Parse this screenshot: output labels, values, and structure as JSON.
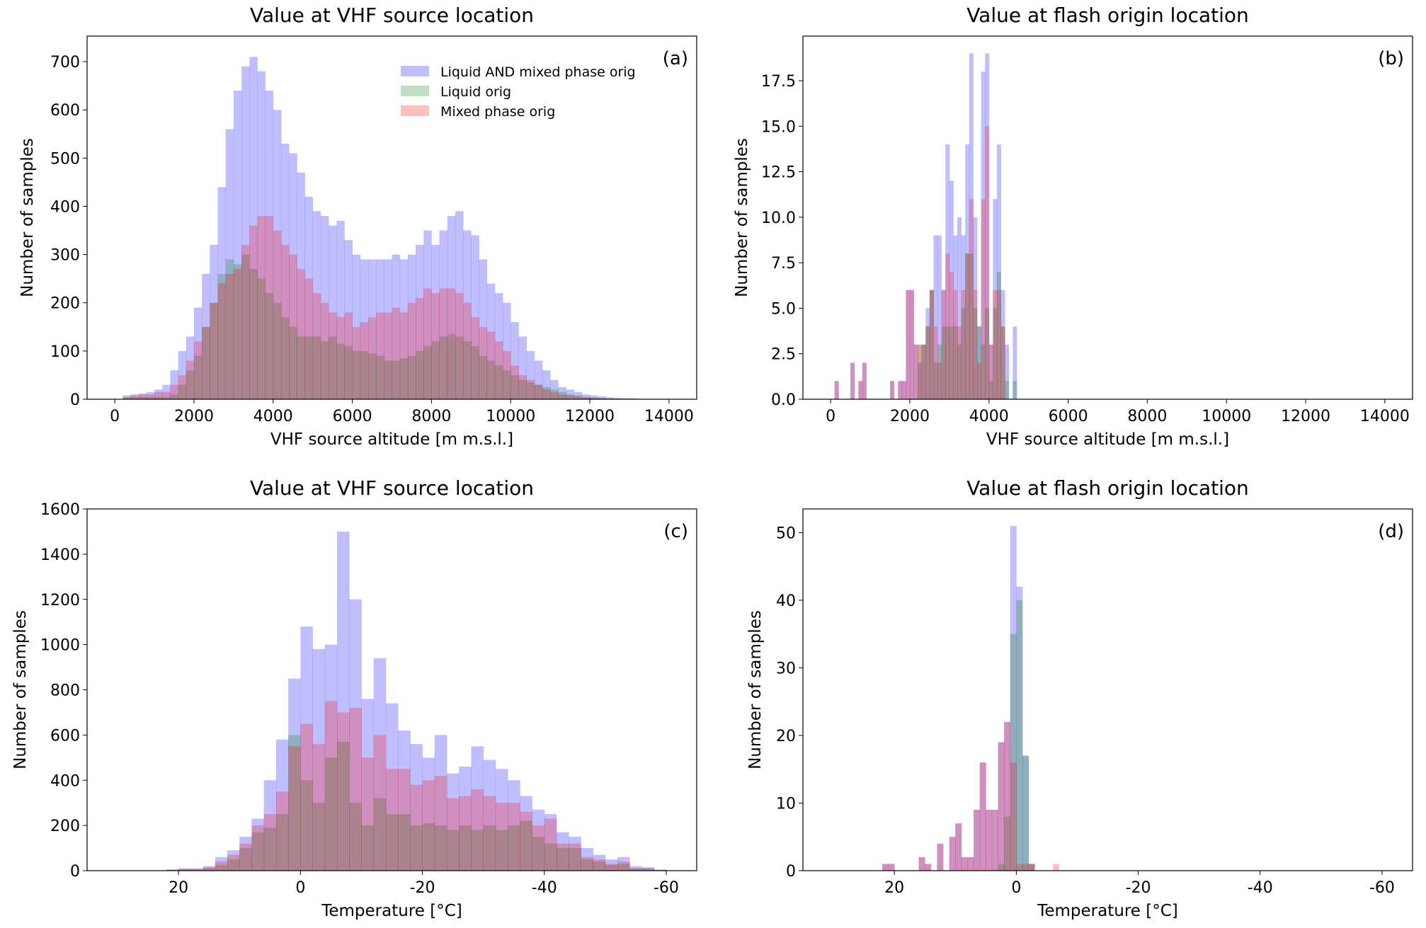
{
  "colors": {
    "all": "#0000ff",
    "liquid": "#008000",
    "mixed": "#ff0000",
    "alpha": 0.25
  },
  "legend": [
    "Liquid AND mixed phase orig",
    "Liquid orig",
    "Mixed phase orig"
  ],
  "chart_data": [
    {
      "id": "a",
      "type": "bar",
      "panel_label": "(a)",
      "title": "Value at VHF source location",
      "xlabel": "VHF source altitude [m m.s.l.]",
      "ylabel": "Number of samples",
      "xlim": [
        -700,
        14700
      ],
      "ylim": [
        0,
        753
      ],
      "legend_position": "top-right",
      "xticks": [
        0,
        2000,
        4000,
        6000,
        8000,
        10000,
        12000,
        14000
      ],
      "yticks": [
        0,
        100,
        200,
        300,
        400,
        500,
        600,
        700
      ],
      "bin_start": 0,
      "bin_width": 200,
      "series": [
        {
          "name": "Liquid AND mixed phase orig",
          "key": "all",
          "values": [
            0,
            8,
            10,
            12,
            15,
            20,
            30,
            60,
            100,
            130,
            190,
            260,
            320,
            440,
            560,
            640,
            690,
            710,
            680,
            640,
            600,
            530,
            510,
            470,
            420,
            390,
            380,
            360,
            370,
            330,
            300,
            290,
            290,
            290,
            290,
            300,
            290,
            300,
            320,
            350,
            320,
            350,
            380,
            390,
            350,
            340,
            290,
            240,
            220,
            200,
            160,
            130,
            100,
            80,
            60,
            40,
            25,
            20,
            15,
            10,
            8,
            6,
            4,
            3,
            2,
            2,
            1
          ]
        },
        {
          "name": "Liquid orig",
          "key": "liquid",
          "values": [
            0,
            3,
            4,
            5,
            5,
            5,
            5,
            10,
            30,
            60,
            90,
            150,
            200,
            260,
            290,
            280,
            300,
            270,
            250,
            220,
            200,
            170,
            150,
            130,
            130,
            130,
            120,
            130,
            115,
            110,
            100,
            100,
            95,
            90,
            80,
            80,
            85,
            90,
            100,
            110,
            120,
            130,
            135,
            130,
            120,
            110,
            90,
            80,
            70,
            60,
            50,
            40,
            35,
            30,
            25,
            20,
            15,
            10,
            8,
            5,
            4,
            3,
            2,
            1,
            1,
            1,
            0
          ]
        },
        {
          "name": "Mixed phase orig",
          "key": "mixed",
          "values": [
            0,
            5,
            8,
            10,
            10,
            15,
            15,
            30,
            50,
            80,
            120,
            150,
            200,
            240,
            260,
            270,
            320,
            360,
            380,
            380,
            350,
            320,
            300,
            270,
            250,
            220,
            200,
            180,
            170,
            180,
            150,
            160,
            170,
            180,
            180,
            190,
            180,
            200,
            210,
            230,
            220,
            230,
            230,
            220,
            200,
            170,
            150,
            140,
            120,
            100,
            70,
            50,
            40,
            30,
            20,
            15,
            10,
            8,
            6,
            4,
            3,
            2,
            1,
            1,
            0,
            0,
            0
          ]
        }
      ]
    },
    {
      "id": "b",
      "type": "bar",
      "panel_label": "(b)",
      "title": "Value at flash origin location",
      "xlabel": "VHF source altitude [m m.s.l.]",
      "ylabel": "Number of samples",
      "xlim": [
        -700,
        14700
      ],
      "ylim": [
        0,
        19.95
      ],
      "xticks": [
        0,
        2000,
        4000,
        6000,
        8000,
        10000,
        12000,
        14000
      ],
      "yticks": [
        "0.0",
        "2.5",
        "5.0",
        "7.5",
        "10.0",
        "12.5",
        "15.0",
        "17.5"
      ],
      "bin_start": 0,
      "bin_width": 100,
      "series": [
        {
          "name": "Liquid AND mixed phase orig",
          "key": "all",
          "values": [
            0,
            1,
            0,
            0,
            0,
            2,
            0,
            1,
            2,
            0,
            0,
            0,
            0,
            0,
            0,
            1,
            0,
            1,
            1,
            6,
            6,
            3,
            2,
            3,
            5,
            6,
            9,
            9,
            6,
            14,
            12,
            9,
            10,
            9,
            14,
            19,
            10,
            4,
            18,
            19,
            3,
            11,
            14,
            6,
            3,
            0,
            4,
            0
          ]
        },
        {
          "name": "Liquid orig",
          "key": "liquid",
          "values": [
            0,
            0,
            0,
            0,
            0,
            0,
            0,
            0,
            0,
            0,
            0,
            0,
            0,
            0,
            0,
            0,
            0,
            0,
            0,
            0,
            0,
            0,
            3,
            3,
            4,
            6,
            2,
            3,
            4,
            4,
            4,
            4,
            3,
            5,
            8,
            8,
            5,
            4,
            3,
            5,
            1,
            5,
            7,
            4,
            1,
            0,
            1,
            0
          ]
        },
        {
          "name": "Mixed phase orig",
          "key": "mixed",
          "values": [
            0,
            1,
            0,
            0,
            0,
            2,
            0,
            1,
            2,
            0,
            0,
            0,
            0,
            0,
            0,
            1,
            0,
            1,
            1,
            6,
            6,
            3,
            3,
            3,
            4,
            6,
            4,
            2,
            6,
            8,
            7,
            6,
            4,
            6,
            8,
            11,
            6,
            2,
            11,
            15,
            3,
            6,
            6,
            4,
            0,
            0,
            0,
            0
          ]
        }
      ]
    },
    {
      "id": "c",
      "type": "bar",
      "panel_label": "(c)",
      "title": "Value at VHF source location",
      "xlabel": "Temperature [°C]",
      "ylabel": "Number of samples",
      "xlim": [
        35,
        -65
      ],
      "ylim": [
        0,
        1600
      ],
      "xticks": [
        20,
        0,
        -20,
        -40,
        -60
      ],
      "yticks": [
        0,
        200,
        400,
        600,
        800,
        1000,
        1200,
        1400,
        1600
      ],
      "bin_start": 22,
      "bin_width": -2,
      "series": [
        {
          "name": "Liquid AND mixed phase orig",
          "key": "all",
          "values": [
            5,
            10,
            10,
            20,
            60,
            90,
            150,
            230,
            400,
            580,
            850,
            1080,
            980,
            1000,
            1500,
            1200,
            760,
            940,
            740,
            620,
            560,
            500,
            600,
            430,
            460,
            550,
            490,
            450,
            400,
            330,
            270,
            250,
            170,
            150,
            100,
            70,
            50,
            60,
            20,
            15,
            5
          ]
        },
        {
          "name": "Liquid orig",
          "key": "liquid",
          "values": [
            3,
            5,
            5,
            10,
            25,
            50,
            100,
            170,
            190,
            250,
            600,
            400,
            300,
            500,
            570,
            300,
            200,
            320,
            250,
            250,
            200,
            210,
            200,
            180,
            200,
            180,
            200,
            180,
            200,
            220,
            150,
            120,
            100,
            100,
            50,
            40,
            25,
            30,
            10,
            10,
            3
          ]
        },
        {
          "name": "Mixed phase orig",
          "key": "mixed",
          "values": [
            5,
            8,
            8,
            15,
            40,
            70,
            120,
            200,
            250,
            350,
            550,
            650,
            560,
            750,
            700,
            720,
            500,
            600,
            450,
            450,
            380,
            400,
            420,
            320,
            330,
            360,
            330,
            300,
            300,
            260,
            200,
            230,
            120,
            120,
            60,
            50,
            30,
            40,
            10,
            10,
            3
          ]
        }
      ]
    },
    {
      "id": "d",
      "type": "bar",
      "panel_label": "(d)",
      "title": "Value at flash origin location",
      "xlabel": "Temperature [°C]",
      "ylabel": "Number of samples",
      "xlim": [
        35,
        -65
      ],
      "ylim": [
        0,
        53.5
      ],
      "xticks": [
        20,
        0,
        -20,
        -40,
        -60
      ],
      "yticks": [
        0,
        10,
        20,
        30,
        40,
        50
      ],
      "bin_start": 22,
      "bin_width": -1,
      "series": [
        {
          "name": "Liquid AND mixed phase orig",
          "key": "all",
          "values": [
            1,
            1,
            0,
            0,
            0,
            0,
            2,
            1,
            0,
            4,
            0,
            5,
            7,
            2,
            2,
            9,
            16,
            9,
            9,
            19,
            22,
            51,
            42,
            17,
            1,
            0,
            0,
            0,
            0
          ]
        },
        {
          "name": "Liquid orig",
          "key": "liquid",
          "values": [
            0,
            0,
            0,
            0,
            0,
            0,
            0,
            0,
            0,
            0,
            0,
            0,
            0,
            0,
            0,
            0,
            0,
            0,
            0,
            1,
            8,
            35,
            40,
            17,
            1,
            0,
            0,
            0,
            0
          ]
        },
        {
          "name": "Mixed phase orig",
          "key": "mixed",
          "values": [
            1,
            1,
            0,
            0,
            0,
            0,
            2,
            1,
            0,
            4,
            0,
            5,
            7,
            2,
            2,
            9,
            16,
            9,
            9,
            19,
            22,
            16,
            1,
            1,
            1,
            0,
            0,
            0,
            1
          ]
        }
      ]
    }
  ]
}
